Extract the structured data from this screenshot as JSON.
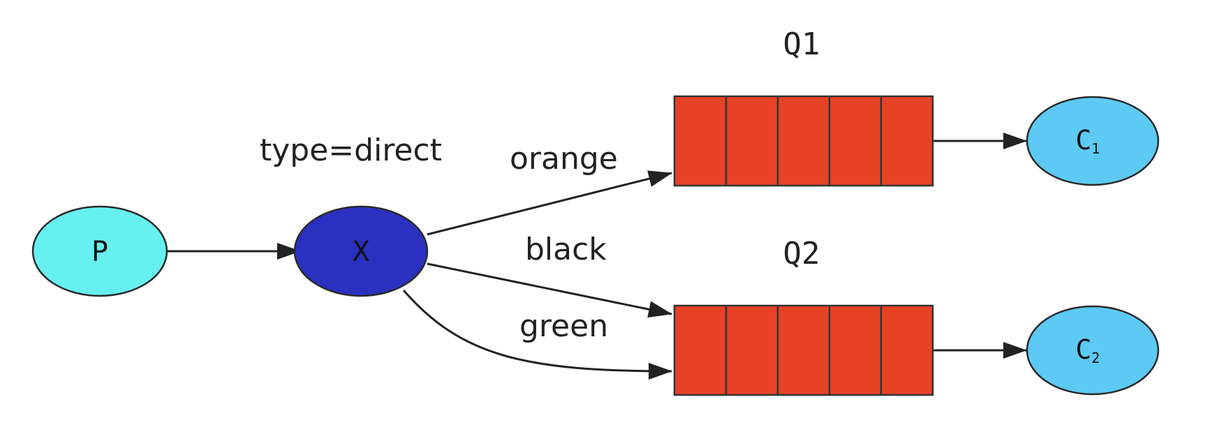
{
  "diagram": {
    "exchange_type_label": "type=direct",
    "colors": {
      "producer_fill": "#66f0f0",
      "exchange_fill": "#2a30c0",
      "consumer_fill": "#5ccaf4",
      "queue_fill": "#e84226",
      "outline": "#2a2a2a",
      "edge": "#222222"
    },
    "nodes": {
      "producer": {
        "label": "P"
      },
      "exchange": {
        "label": "X"
      },
      "consumer1": {
        "label": "C",
        "subscript": "1"
      },
      "consumer2": {
        "label": "C",
        "subscript": "2"
      }
    },
    "queues": {
      "q1": {
        "label": "Q1",
        "slots": 5
      },
      "q2": {
        "label": "Q2",
        "slots": 5
      }
    },
    "bindings": {
      "orange": "orange",
      "black": "black",
      "green": "green"
    }
  }
}
